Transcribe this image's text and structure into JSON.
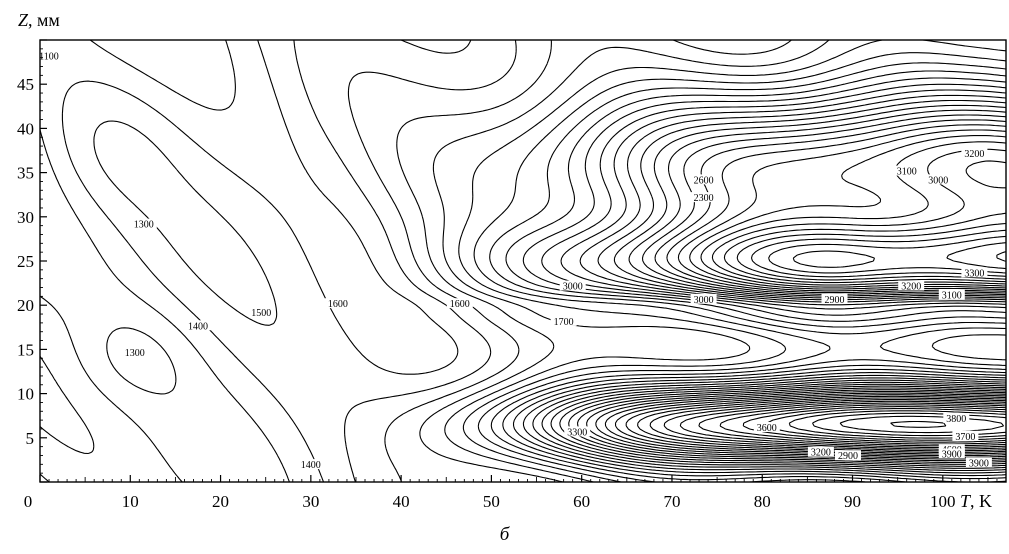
{
  "caption": "б",
  "chart_data": {
    "type": "contour",
    "xlabel_var": "T",
    "xlabel_unit": ", K",
    "ylabel_var": "Z",
    "ylabel_unit": ", мм",
    "xlim": [
      0,
      107
    ],
    "ylim": [
      0,
      50
    ],
    "x_ticks": [
      0,
      10,
      20,
      30,
      40,
      50,
      60,
      70,
      80,
      90,
      100
    ],
    "y_ticks": [
      5,
      10,
      15,
      20,
      25,
      30,
      35,
      40,
      45
    ],
    "grid": false,
    "contour_step": 100,
    "contour_labels": [
      {
        "text": "1100",
        "x": 1,
        "y": 48
      },
      {
        "text": "1300",
        "x": 11.5,
        "y": 29
      },
      {
        "text": "1400",
        "x": 17.5,
        "y": 17.5
      },
      {
        "text": "1300",
        "x": 10.5,
        "y": 14.5
      },
      {
        "text": "1500",
        "x": 24.5,
        "y": 19
      },
      {
        "text": "1600",
        "x": 33,
        "y": 20
      },
      {
        "text": "1600",
        "x": 46.5,
        "y": 20
      },
      {
        "text": "1700",
        "x": 58,
        "y": 18
      },
      {
        "text": "3000",
        "x": 59,
        "y": 22
      },
      {
        "text": "3000",
        "x": 73.5,
        "y": 20.5
      },
      {
        "text": "2900",
        "x": 88,
        "y": 20.5
      },
      {
        "text": "3200",
        "x": 96.5,
        "y": 22
      },
      {
        "text": "3100",
        "x": 101,
        "y": 21
      },
      {
        "text": "3300",
        "x": 103.5,
        "y": 23.5
      },
      {
        "text": "2600",
        "x": 73.5,
        "y": 34
      },
      {
        "text": "2300",
        "x": 73.5,
        "y": 32
      },
      {
        "text": "3100",
        "x": 96,
        "y": 35
      },
      {
        "text": "3000",
        "x": 99.5,
        "y": 34
      },
      {
        "text": "3200",
        "x": 103.5,
        "y": 37
      },
      {
        "text": "1400",
        "x": 30,
        "y": 1.8
      },
      {
        "text": "3300",
        "x": 59.5,
        "y": 5.5
      },
      {
        "text": "3600",
        "x": 80.5,
        "y": 6
      },
      {
        "text": "3800",
        "x": 101.5,
        "y": 7
      },
      {
        "text": "3700",
        "x": 102.5,
        "y": 5
      },
      {
        "text": "4600",
        "x": 101,
        "y": 3.5
      },
      {
        "text": "3900",
        "x": 101,
        "y": 3
      },
      {
        "text": "3900",
        "x": 104,
        "y": 2
      },
      {
        "text": "3200",
        "x": 86.5,
        "y": 3.2
      },
      {
        "text": "2900",
        "x": 89.5,
        "y": 2.8
      }
    ]
  }
}
